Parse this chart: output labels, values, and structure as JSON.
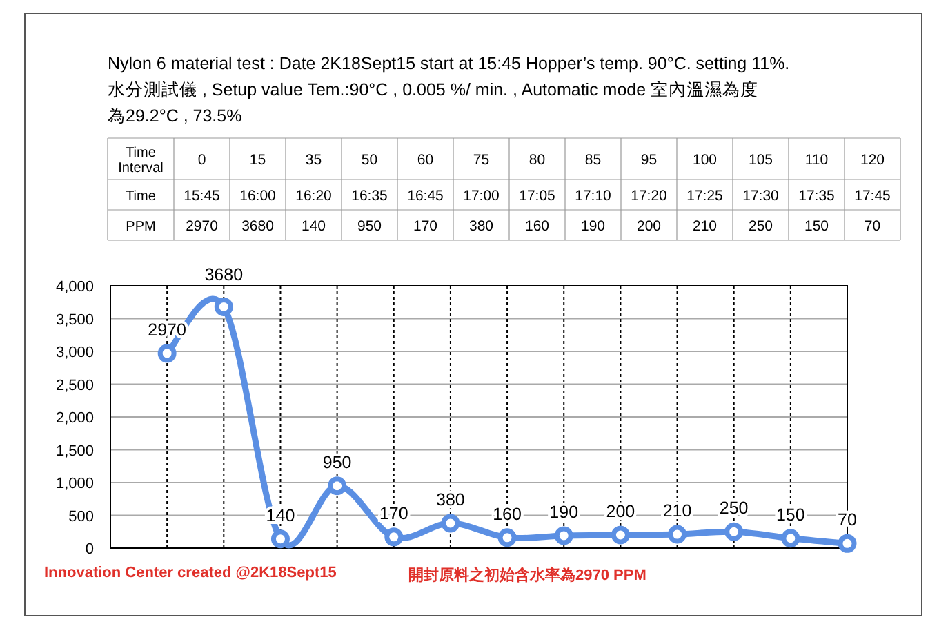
{
  "chart_data": [
    {
      "type": "other",
      "annotations": [
        "Time Interval",
        "0",
        "15",
        "35",
        "50",
        "60",
        "75",
        "80",
        "85",
        "95",
        "100",
        "105",
        "110",
        "120",
        "Time",
        "15:45",
        "16:00",
        "16:20",
        "16:35",
        "16:45",
        "17:00",
        "17:05",
        "17:10",
        "17:20",
        "17:25",
        "17:30",
        "17:35",
        "17:45",
        "PPM",
        "2970",
        "3680",
        "140",
        "950",
        "170",
        "380",
        "160",
        "190",
        "200",
        "210",
        "250",
        "150",
        "70"
      ]
    },
    {
      "type": "line",
      "title": "Nylon 6 material test : Date 2K18Sept15 start at 15:45 Hopper’s temp. 90°C. setting 11%.",
      "subtitle": "水分測試儀 , Setup value Tem.:90°C , 0.005 %/ min. , Automatic mode  室內溫濕為度為29.2°C , 73.5%",
      "categories": [
        null,
        null,
        null,
        null,
        null,
        null,
        null,
        null,
        null,
        null,
        null,
        null,
        null
      ],
      "series": [
        {
          "color": "#5b8fe3",
          "values": [
            2970,
            3680,
            140,
            950,
            170,
            380,
            160,
            190,
            200,
            210,
            250,
            150,
            70
          ]
        }
      ],
      "ylim": [
        0,
        4000
      ],
      "yticks": [
        {
          "value": 0,
          "label": "0"
        },
        {
          "value": 500,
          "label": "500"
        },
        {
          "value": 1000,
          "label": "1,000"
        },
        {
          "value": 1500,
          "label": "1,500"
        },
        {
          "value": 2000,
          "label": "2,000"
        },
        {
          "value": 2500,
          "label": "2,500"
        },
        {
          "value": 3000,
          "label": "3,000"
        },
        {
          "value": 3500,
          "label": "3,500"
        },
        {
          "value": 4000,
          "label": "4,000"
        }
      ],
      "grid": true,
      "marker": "circle",
      "data_labels": true,
      "annotations": [
        "Innovation Center created @2K18Sept15",
        "開封原料之初始含水率為2970 PPM"
      ]
    }
  ]
}
